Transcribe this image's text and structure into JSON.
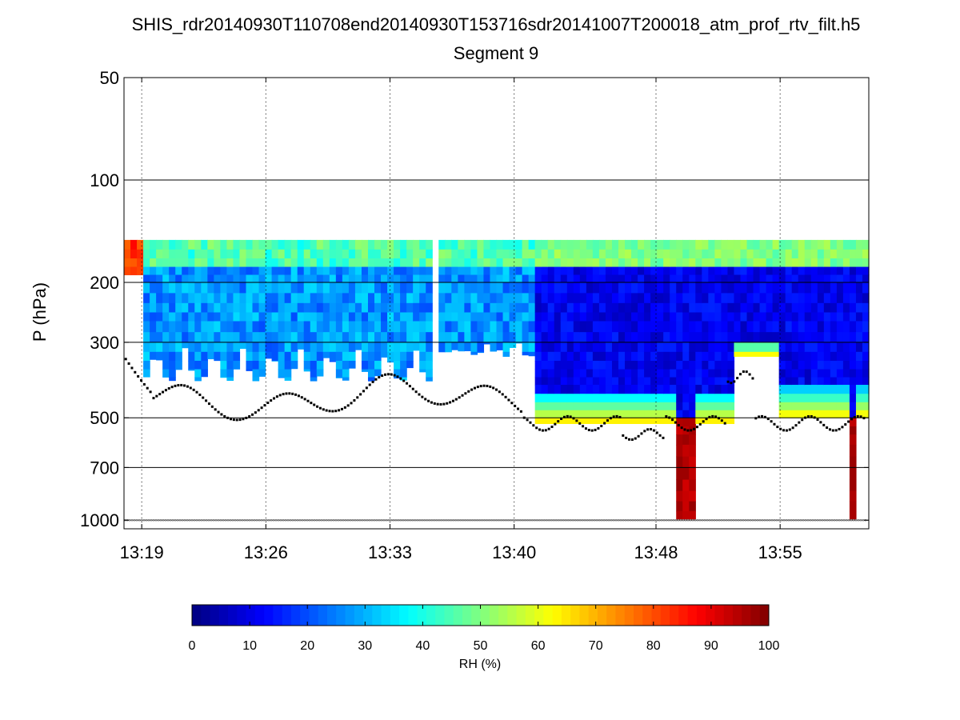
{
  "chart_data": {
    "type": "heatmap",
    "title": "SHIS_rdr20140930T110708end20140930T153716sdr20141007T200018_atm_prof_rtv_filt.h5",
    "subtitle": "Segment 9",
    "xlabel": "",
    "ylabel": "P (hPa)",
    "y_scale": "log-pressure",
    "ylim": [
      1000,
      50
    ],
    "y_ticks": [
      "50",
      "100",
      "200",
      "300",
      "500",
      "700",
      "1000"
    ],
    "y_tick_values": [
      50,
      100,
      200,
      300,
      500,
      700,
      1000
    ],
    "xlim": [
      "13:18",
      "14:00"
    ],
    "x_ticks": [
      "13:19",
      "13:26",
      "13:33",
      "13:40",
      "13:48",
      "13:55"
    ],
    "x_tick_minutes": [
      19,
      26,
      33,
      40,
      48,
      55
    ],
    "grid_y": "solid",
    "grid_x": "dotted",
    "colorbar": {
      "label": "RH (%)",
      "min": 0,
      "max": 100,
      "ticks": [
        "0",
        "10",
        "20",
        "30",
        "40",
        "50",
        "60",
        "70",
        "80",
        "90",
        "100"
      ],
      "colormap": "jet",
      "placement": "bottom"
    },
    "notes_on_series": "RH field shown between ~150 hPa and surface; black dotted series marks cloud-top / boundary pressure; grey markers along 1000 hPa."
  }
}
